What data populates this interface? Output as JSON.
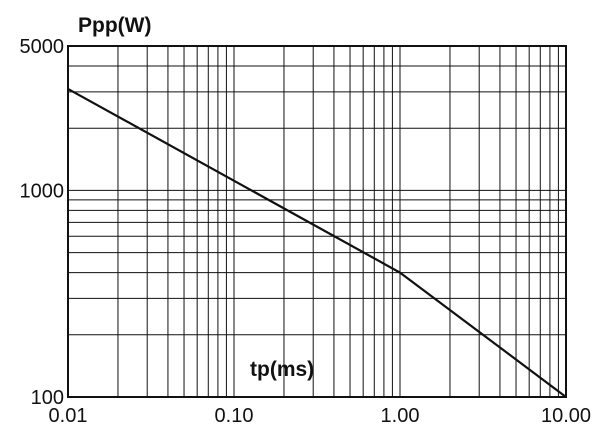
{
  "chart_data": {
    "type": "line",
    "title": "",
    "xlabel": "tp(ms)",
    "ylabel": "Ppp(W)",
    "x_scale": "log",
    "y_scale": "log",
    "xlim": [
      0.01,
      10
    ],
    "ylim": [
      100,
      5000
    ],
    "grid": true,
    "x_tick_values": [
      0.01,
      0.1,
      1,
      10
    ],
    "x_tick_labels": [
      "0.01",
      "0.10",
      "1.00",
      "10.00"
    ],
    "y_tick_values": [
      100,
      1000,
      5000
    ],
    "y_tick_labels": [
      "100",
      "1000",
      "5000"
    ],
    "series": [
      {
        "x": [
          0.01,
          1.0,
          10.0
        ],
        "y": [
          3100,
          400,
          100
        ]
      }
    ],
    "colors": {
      "line": "#111111",
      "grid": "#111111",
      "frame": "#111111"
    }
  }
}
